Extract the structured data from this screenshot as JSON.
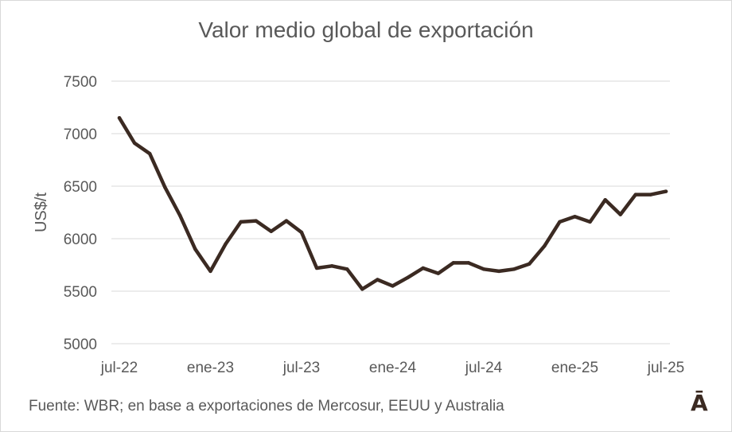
{
  "chart_data": {
    "type": "line",
    "title": "Valor medio global de exportación",
    "xlabel": "",
    "ylabel": "US$/t",
    "ylim": [
      5000,
      7500
    ],
    "yticks": [
      5000,
      5500,
      6000,
      6500,
      7000,
      7500
    ],
    "grid": true,
    "x": [
      "jul-22",
      "ago-22",
      "sep-22",
      "oct-22",
      "nov-22",
      "dic-22",
      "ene-23",
      "feb-23",
      "mar-23",
      "abr-23",
      "may-23",
      "jun-23",
      "jul-23",
      "ago-23",
      "sep-23",
      "oct-23",
      "nov-23",
      "dic-23",
      "ene-24",
      "feb-24",
      "mar-24",
      "abr-24",
      "may-24",
      "jun-24",
      "jul-24",
      "ago-24",
      "sep-24",
      "oct-24",
      "nov-24",
      "dic-24",
      "ene-25",
      "feb-25",
      "mar-25",
      "abr-25",
      "may-25",
      "jun-25",
      "jul-25"
    ],
    "x_tick_labels": [
      "jul-22",
      "ene-23",
      "jul-23",
      "ene-24",
      "jul-24",
      "ene-25",
      "jul-25"
    ],
    "series": [
      {
        "name": "",
        "color": "#3b2a22",
        "values": [
          7150,
          6910,
          6810,
          6490,
          6220,
          5900,
          5690,
          5950,
          6160,
          6170,
          6070,
          6170,
          6060,
          5720,
          5740,
          5710,
          5520,
          5610,
          5550,
          5630,
          5720,
          5670,
          5770,
          5770,
          5710,
          5690,
          5710,
          5760,
          5930,
          6160,
          6210,
          6160,
          6370,
          6230,
          6420,
          6420,
          6450
        ]
      }
    ]
  },
  "footer": {
    "source": "Fuente: WBR; en base a exportaciones de Mercosur, EEUU y Australia",
    "logo_text": "Ā"
  }
}
